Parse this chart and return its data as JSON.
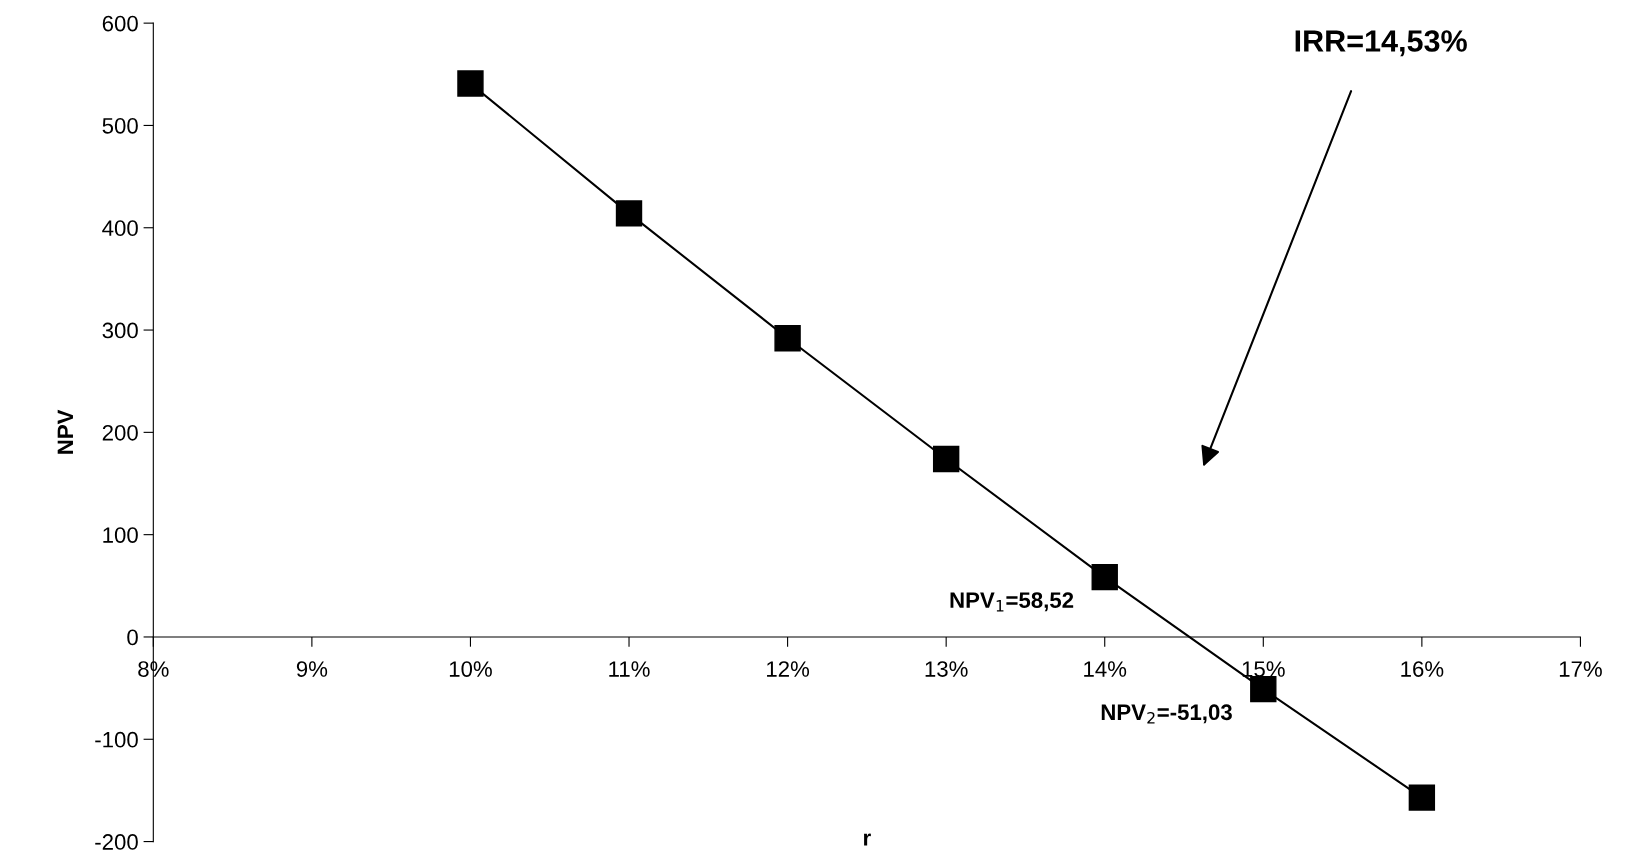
{
  "chart_data": {
    "type": "line",
    "xlabel": "r",
    "ylabel": "NPV",
    "x": [
      10,
      11,
      12,
      13,
      14,
      15,
      16
    ],
    "series": [
      {
        "color": "#000000",
        "values": [
          541,
          414,
          292,
          174,
          58.52,
          -51.03,
          -157
        ]
      }
    ],
    "xlim": [
      8,
      17
    ],
    "ylim": [
      -200,
      600
    ],
    "xticks": [
      {
        "value": 8,
        "label": "8%"
      },
      {
        "value": 9,
        "label": "9%"
      },
      {
        "value": 10,
        "label": "10%"
      },
      {
        "value": 11,
        "label": "11%"
      },
      {
        "value": 12,
        "label": "12%"
      },
      {
        "value": 13,
        "label": "13%"
      },
      {
        "value": 14,
        "label": "14%"
      },
      {
        "value": 15,
        "label": "15%"
      },
      {
        "value": 16,
        "label": "16%"
      },
      {
        "value": 17,
        "label": "17%"
      }
    ],
    "yticks": [
      -200,
      -100,
      0,
      100,
      200,
      300,
      400,
      500,
      600
    ],
    "marker": "square",
    "line_style": "solid",
    "grid": false,
    "legend": false,
    "annotations": [
      "IRR=14,53%",
      {
        "text": "NPV$_{1}$=58,52",
        "x": 14,
        "y": 58.52
      },
      {
        "text": "NPV$_{2}$=-51,03",
        "x": 15,
        "y": -51.03
      }
    ]
  }
}
